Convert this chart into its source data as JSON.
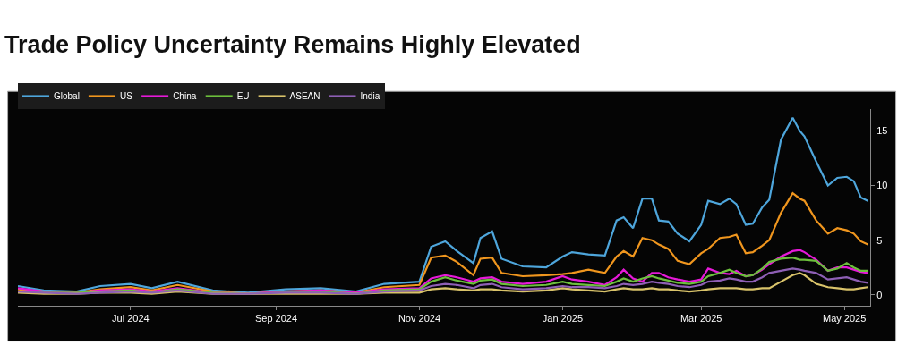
{
  "chart_data": {
    "type": "line",
    "title": "Trade Policy Uncertainty Remains Highly Elevated",
    "x": [
      "2024-05-14",
      "2024-05-25",
      "2024-06-08",
      "2024-06-18",
      "2024-07-01",
      "2024-07-10",
      "2024-07-21",
      "2024-08-05",
      "2024-08-20",
      "2024-09-05",
      "2024-09-20",
      "2024-10-05",
      "2024-10-17",
      "2024-11-01",
      "2024-11-06",
      "2024-11-12",
      "2024-11-17",
      "2024-11-24",
      "2024-11-27",
      "2024-12-02",
      "2024-12-06",
      "2024-12-15",
      "2024-12-25",
      "2025-01-01",
      "2025-01-05",
      "2025-01-12",
      "2025-01-19",
      "2025-01-24",
      "2025-01-27",
      "2025-01-31",
      "2025-02-04",
      "2025-02-08",
      "2025-02-11",
      "2025-02-15",
      "2025-02-19",
      "2025-02-24",
      "2025-03-01",
      "2025-03-04",
      "2025-03-09",
      "2025-03-13",
      "2025-03-16",
      "2025-03-20",
      "2025-03-23",
      "2025-03-27",
      "2025-03-30",
      "2025-04-04",
      "2025-04-09",
      "2025-04-12",
      "2025-04-14",
      "2025-04-19",
      "2025-04-24",
      "2025-04-28",
      "2025-05-02",
      "2025-05-05",
      "2025-05-08",
      "2025-05-11"
    ],
    "series": [
      {
        "name": "Global",
        "color": "#4ea6dc",
        "values": [
          0.8,
          0.4,
          0.3,
          0.8,
          1.0,
          0.6,
          1.2,
          0.4,
          0.2,
          0.5,
          0.6,
          0.3,
          1.0,
          1.2,
          4.4,
          4.9,
          4.0,
          2.9,
          5.2,
          5.8,
          3.3,
          2.6,
          2.5,
          3.5,
          3.9,
          3.7,
          3.6,
          6.8,
          7.1,
          6.1,
          8.8,
          8.8,
          6.8,
          6.7,
          5.6,
          4.9,
          6.4,
          8.6,
          8.3,
          8.8,
          8.3,
          6.4,
          6.5,
          8.0,
          8.7,
          14.2,
          16.2,
          15.0,
          14.5,
          12.2,
          10.0,
          10.7,
          10.8,
          10.4,
          8.9,
          8.6
        ]
      },
      {
        "name": "US",
        "color": "#f0961e",
        "values": [
          0.5,
          0.3,
          0.2,
          0.5,
          0.7,
          0.4,
          0.9,
          0.3,
          0.1,
          0.3,
          0.4,
          0.2,
          0.7,
          0.9,
          3.4,
          3.6,
          3.0,
          1.8,
          3.3,
          3.4,
          2.0,
          1.7,
          1.8,
          1.9,
          2.0,
          2.3,
          2.0,
          3.5,
          4.0,
          3.5,
          5.2,
          5.0,
          4.6,
          4.2,
          3.1,
          2.8,
          3.8,
          4.2,
          5.2,
          5.3,
          5.5,
          3.8,
          3.9,
          4.5,
          5.0,
          7.5,
          9.3,
          8.8,
          8.6,
          6.8,
          5.6,
          6.1,
          5.9,
          5.6,
          4.9,
          4.6
        ]
      },
      {
        "name": "China",
        "color": "#e619d8",
        "values": [
          0.6,
          0.3,
          0.2,
          0.4,
          0.5,
          0.3,
          0.6,
          0.2,
          0.1,
          0.3,
          0.4,
          0.2,
          0.5,
          0.6,
          1.5,
          1.8,
          1.6,
          1.2,
          1.5,
          1.6,
          1.2,
          1.0,
          1.2,
          1.7,
          1.4,
          1.2,
          0.9,
          1.6,
          2.3,
          1.5,
          1.2,
          2.0,
          2.0,
          1.6,
          1.4,
          1.2,
          1.4,
          2.4,
          2.0,
          1.9,
          2.2,
          1.7,
          1.8,
          2.3,
          2.8,
          3.5,
          4.0,
          4.1,
          3.9,
          3.2,
          2.2,
          2.5,
          2.5,
          2.3,
          2.1,
          2.0
        ]
      },
      {
        "name": "EU",
        "color": "#6cbf3c",
        "values": [
          0.3,
          0.2,
          0.2,
          0.3,
          0.4,
          0.2,
          0.5,
          0.2,
          0.1,
          0.2,
          0.3,
          0.1,
          0.4,
          0.5,
          1.2,
          1.6,
          1.3,
          1.0,
          1.3,
          1.4,
          1.0,
          0.8,
          0.9,
          1.2,
          1.0,
          0.9,
          0.8,
          1.2,
          1.5,
          1.2,
          1.5,
          1.7,
          1.5,
          1.3,
          1.1,
          1.0,
          1.2,
          1.7,
          2.0,
          2.3,
          2.0,
          1.7,
          1.8,
          2.4,
          3.0,
          3.3,
          3.4,
          3.2,
          3.2,
          3.1,
          2.2,
          2.4,
          2.9,
          2.5,
          2.2,
          2.2
        ]
      },
      {
        "name": "ASEAN",
        "color": "#d9c36a",
        "values": [
          0.2,
          0.1,
          0.1,
          0.2,
          0.2,
          0.1,
          0.3,
          0.1,
          0.1,
          0.1,
          0.1,
          0.1,
          0.2,
          0.2,
          0.5,
          0.6,
          0.5,
          0.4,
          0.5,
          0.5,
          0.4,
          0.3,
          0.4,
          0.6,
          0.5,
          0.4,
          0.3,
          0.5,
          0.6,
          0.5,
          0.5,
          0.6,
          0.5,
          0.5,
          0.4,
          0.3,
          0.4,
          0.5,
          0.6,
          0.6,
          0.6,
          0.5,
          0.5,
          0.6,
          0.6,
          1.2,
          1.8,
          2.0,
          1.8,
          1.0,
          0.7,
          0.6,
          0.5,
          0.5,
          0.6,
          0.7
        ]
      },
      {
        "name": "India",
        "color": "#8e5fb5",
        "values": [
          0.3,
          0.2,
          0.1,
          0.2,
          0.3,
          0.2,
          0.4,
          0.1,
          0.1,
          0.2,
          0.2,
          0.1,
          0.3,
          0.4,
          0.8,
          1.0,
          0.9,
          0.6,
          0.9,
          1.0,
          0.7,
          0.5,
          0.6,
          0.8,
          0.7,
          0.7,
          0.6,
          0.8,
          1.0,
          0.9,
          1.0,
          1.2,
          1.1,
          1.0,
          0.8,
          0.7,
          0.9,
          1.2,
          1.3,
          1.5,
          1.4,
          1.2,
          1.2,
          1.6,
          2.0,
          2.2,
          2.4,
          2.3,
          2.2,
          2.0,
          1.4,
          1.5,
          1.6,
          1.4,
          1.2,
          1.1
        ]
      }
    ],
    "xlim": [
      "2024-05-14",
      "2025-05-12"
    ],
    "xticks": [
      {
        "value": "2024-07-01",
        "label": "Jul 2024"
      },
      {
        "value": "2024-09-01",
        "label": "Sep 2024"
      },
      {
        "value": "2024-11-01",
        "label": "Nov 2024"
      },
      {
        "value": "2025-01-01",
        "label": "Jan 2025"
      },
      {
        "value": "2025-03-01",
        "label": "Mar 2025"
      },
      {
        "value": "2025-05-01",
        "label": "May 2025"
      }
    ],
    "ylim": [
      -1.0,
      17.0
    ],
    "yticks": [
      0,
      5,
      10,
      15
    ],
    "grid": false,
    "legend": "top left",
    "marker": "none",
    "line_style": "solid"
  }
}
